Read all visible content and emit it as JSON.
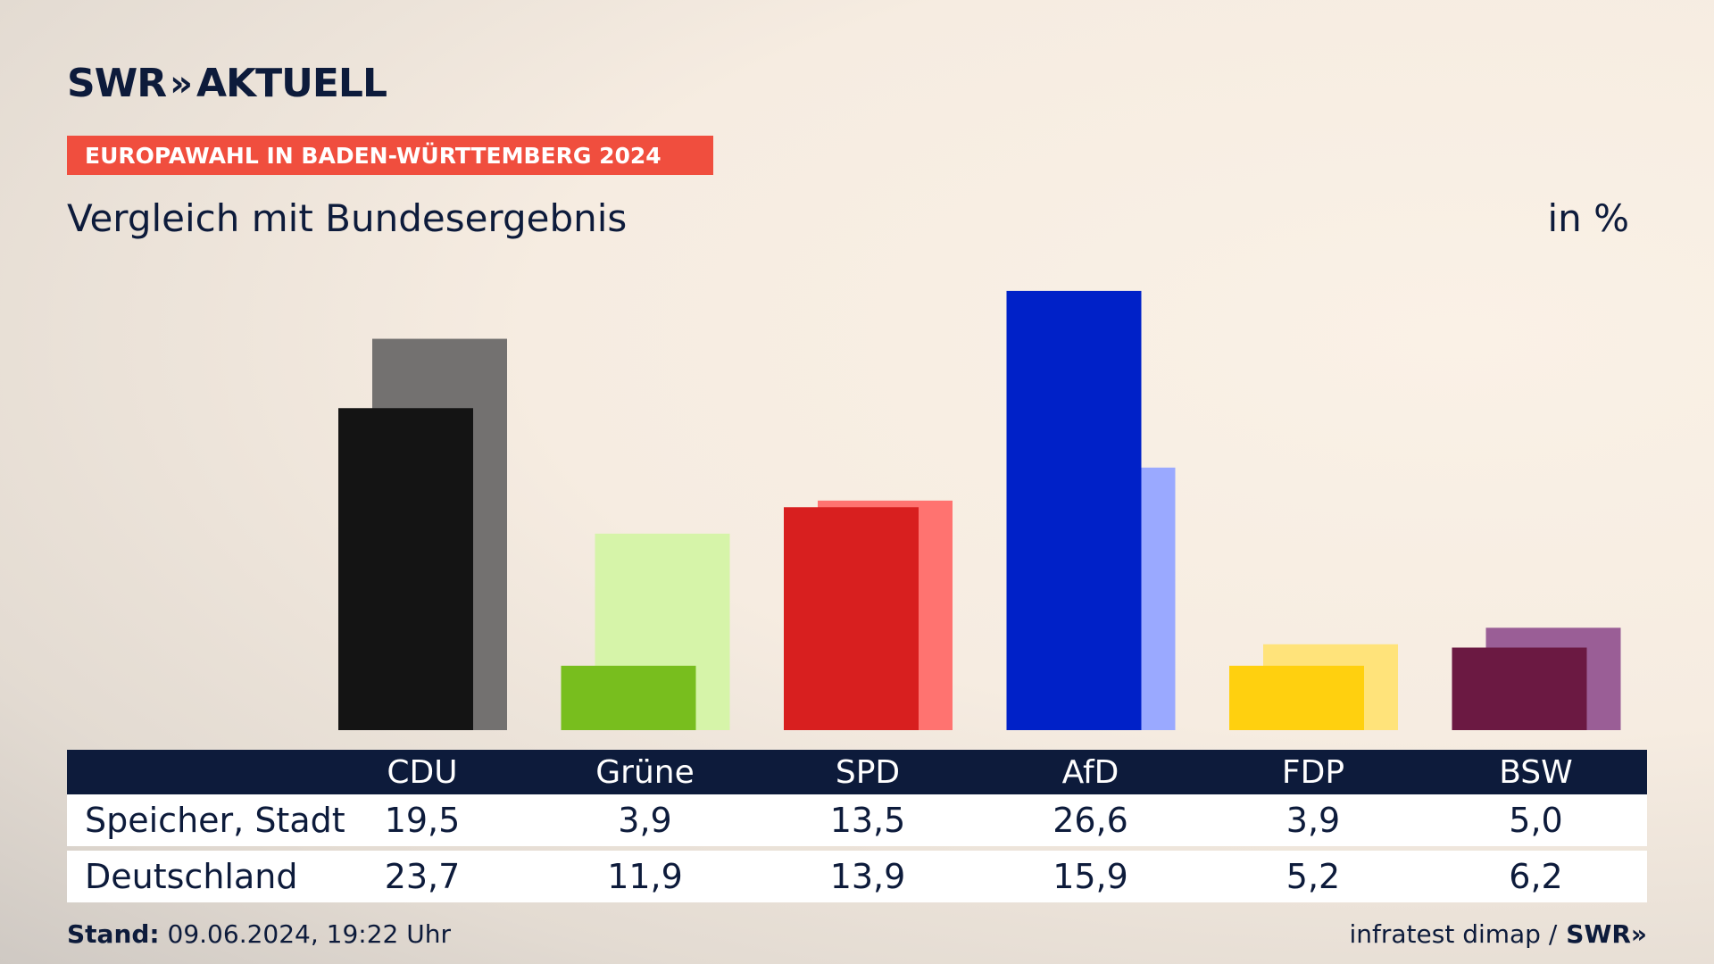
{
  "header": {
    "logo_text": "SWR",
    "logo_chevrons": "»",
    "logo_suffix": "AKTUELL",
    "banner": "EUROPAWAHL IN BADEN-WÜRTTEMBERG 2024",
    "subtitle": "Vergleich mit Bundesergebnis",
    "unit": "in %"
  },
  "table": {
    "rows": [
      {
        "label": "Speicher, Stadt"
      },
      {
        "label": "Deutschland"
      }
    ]
  },
  "footer": {
    "stand_label": "Stand:",
    "stand_value": "09.06.2024, 19:22 Uhr",
    "source": "infratest dimap /",
    "source_brand": "SWR»"
  },
  "chart_data": {
    "type": "bar",
    "categories": [
      "CDU",
      "Grüne",
      "SPD",
      "AfD",
      "FDP",
      "BSW"
    ],
    "series": [
      {
        "name": "Speicher, Stadt",
        "values": [
          19.5,
          3.9,
          13.5,
          26.6,
          3.9,
          5.0
        ]
      },
      {
        "name": "Deutschland",
        "values": [
          23.7,
          11.9,
          13.9,
          15.9,
          5.2,
          6.2
        ]
      }
    ],
    "value_labels": [
      [
        "19,5",
        "3,9",
        "13,5",
        "26,6",
        "3,9",
        "5,0"
      ],
      [
        "23,7",
        "11,9",
        "13,9",
        "15,9",
        "5,2",
        "6,2"
      ]
    ],
    "colors_primary": [
      "#141414",
      "#78be1e",
      "#d81f1f",
      "#0021c8",
      "#ffd00f",
      "#6b1942"
    ],
    "colors_secondary": [
      "#737170",
      "#d6f4a9",
      "#ff7370",
      "#9aa9ff",
      "#ffe37a",
      "#9a5e96"
    ],
    "ylim": [
      0,
      30
    ],
    "grid": false,
    "legend": "table-below"
  }
}
